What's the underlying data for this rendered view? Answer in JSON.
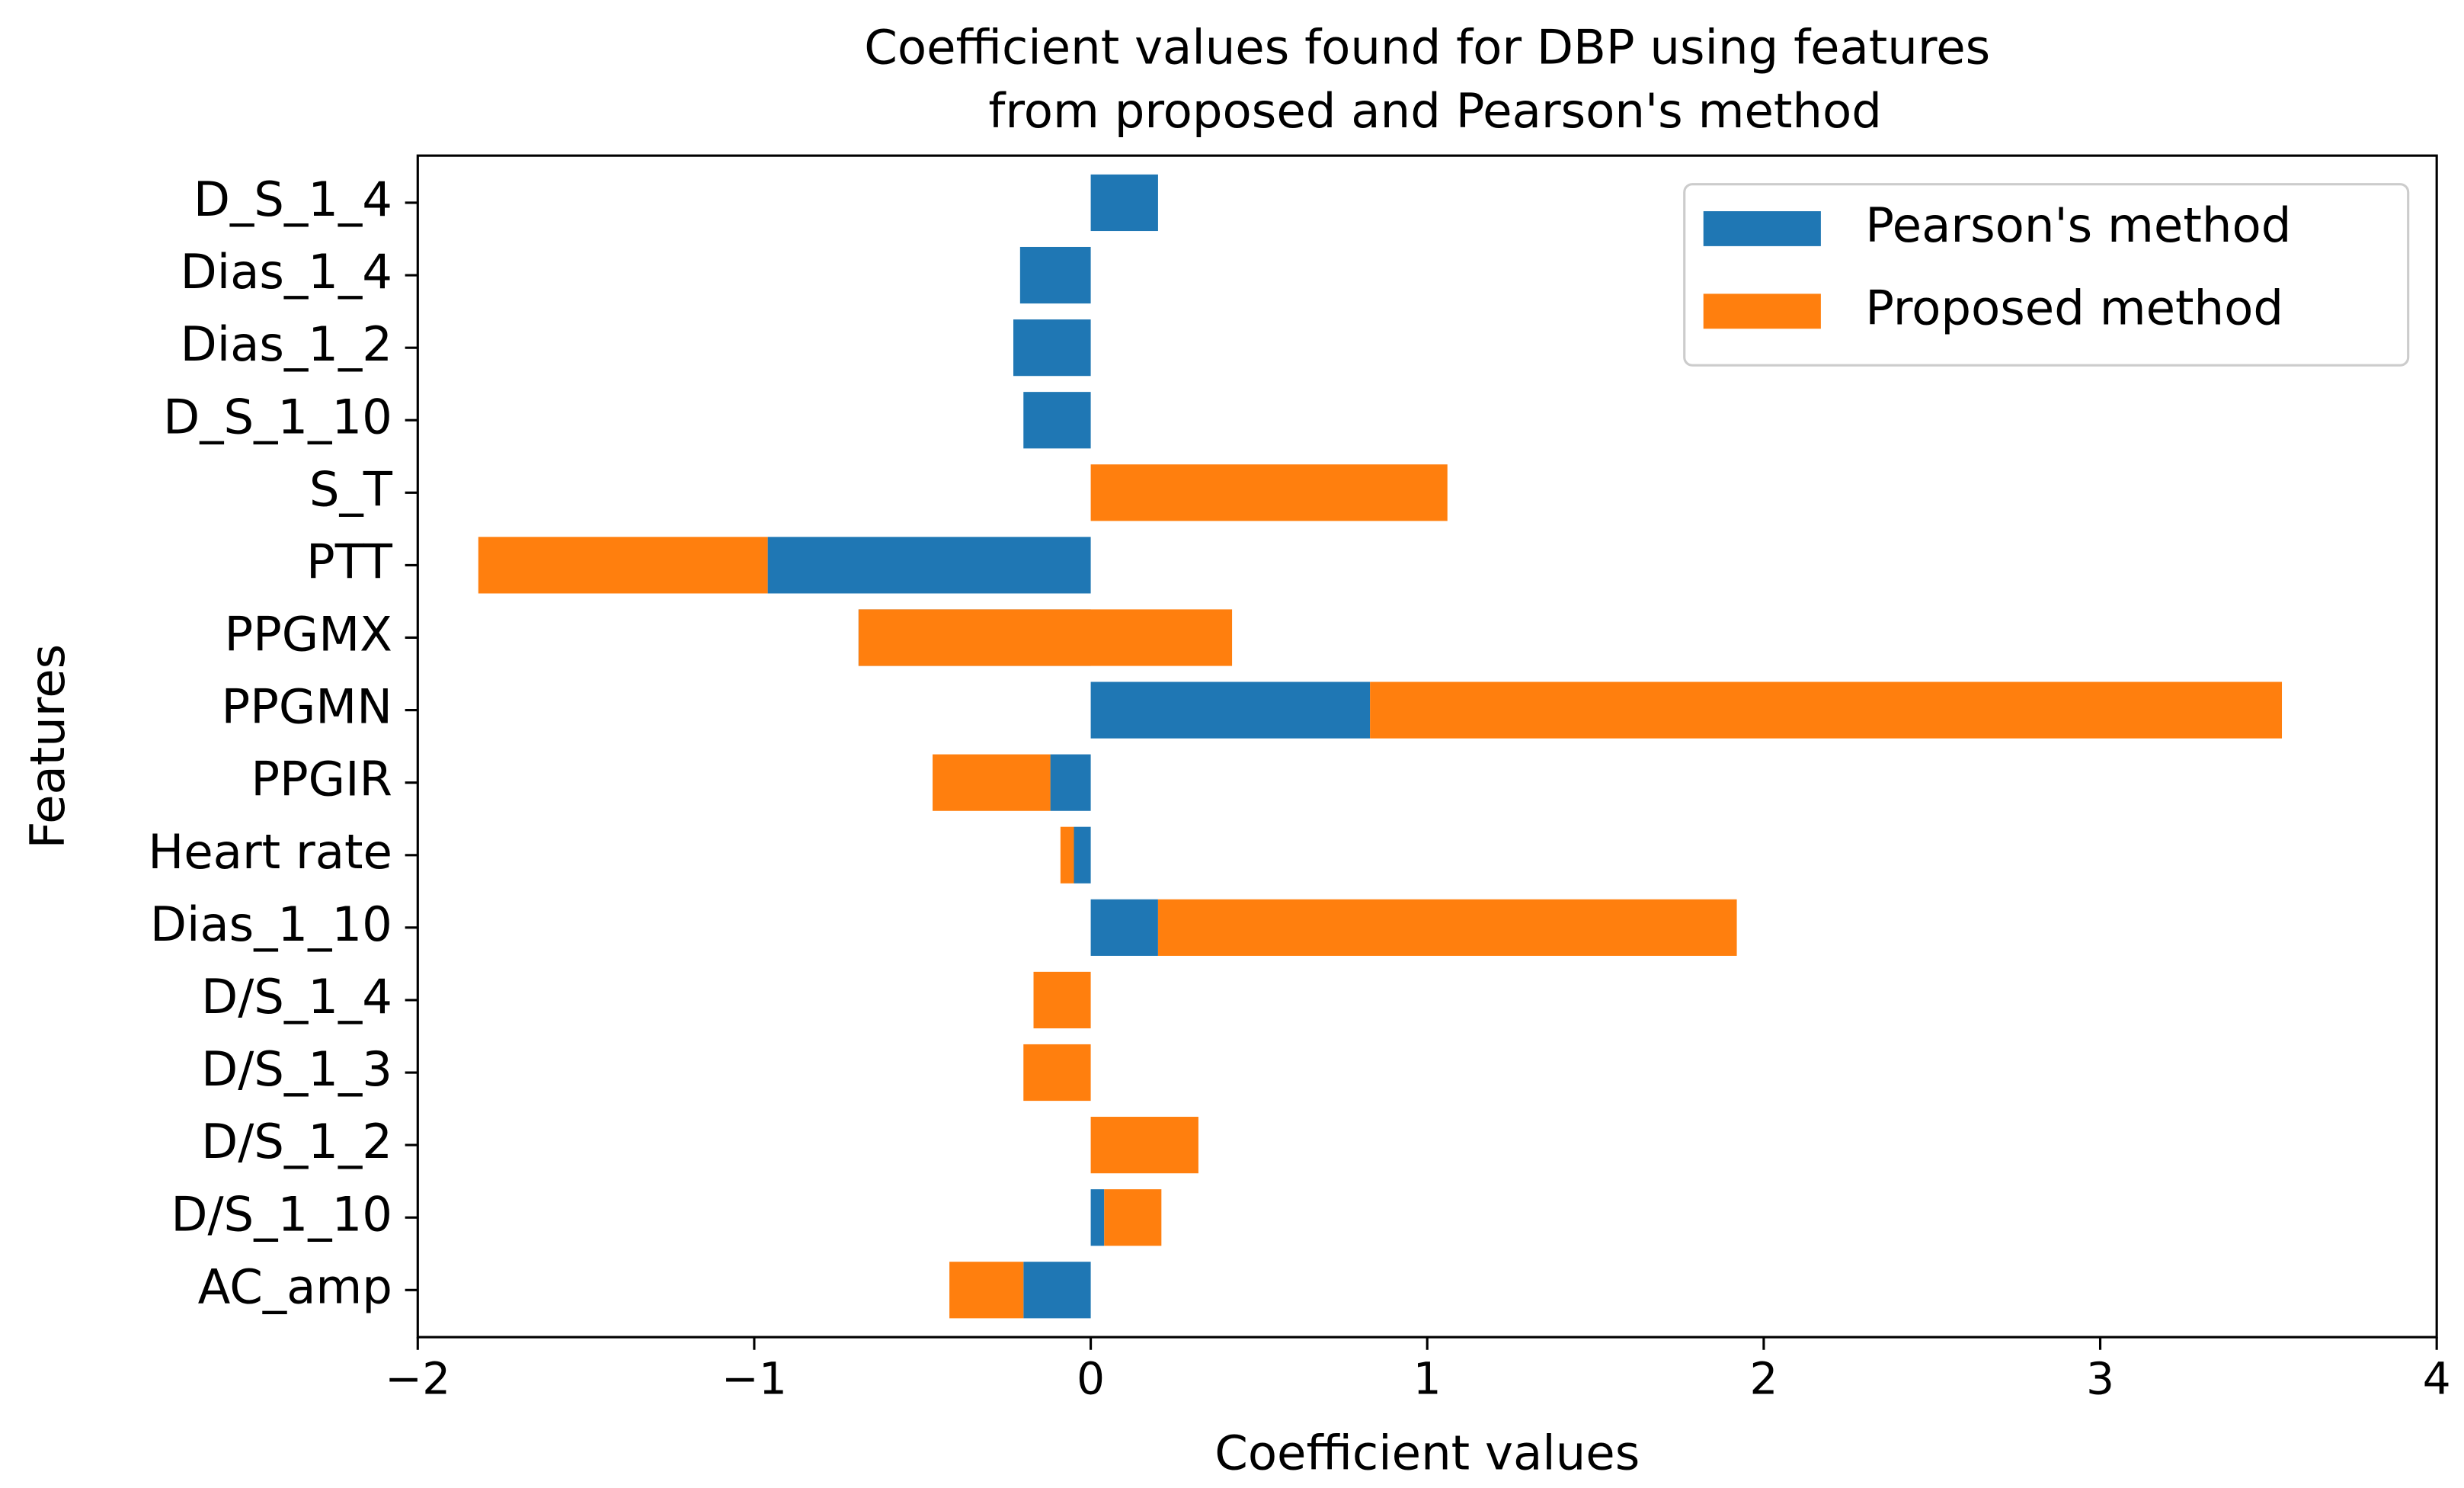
{
  "chart_data": {
    "type": "barh",
    "title": [
      "Coefficient values found for DBP using features",
      "from proposed and Pearson's method"
    ],
    "xlabel": "Coefficient values",
    "ylabel": "Features",
    "categories": [
      "D_S_1_4",
      "Dias_1_4",
      "Dias_1_2",
      "D_S_1_10",
      "S_T",
      "PTT",
      "PPGMX",
      "PPGMN",
      "PPGIR",
      "Heart rate",
      "Dias_1_10",
      "D/S_1_4",
      "D/S_1_3",
      "D/S_1_2",
      "D/S_1_10",
      "AC_amp"
    ],
    "series": [
      {
        "name": "Pearson's method",
        "color": "#1f77b4",
        "values": [
          0.2,
          -0.21,
          -0.23,
          -0.2,
          0,
          -0.96,
          -0.69,
          0.83,
          -0.12,
          -0.05,
          0.2,
          0,
          0,
          0,
          0.04,
          -0.2
        ]
      },
      {
        "name": "Proposed method",
        "color": "#ff7f0e",
        "values": [
          0,
          0,
          0,
          0,
          1.06,
          -0.86,
          1.11,
          2.71,
          -0.35,
          -0.04,
          1.72,
          -0.17,
          -0.2,
          0.32,
          0.17,
          -0.22
        ]
      }
    ],
    "stacked": true,
    "xlim": [
      -2,
      4
    ],
    "xticks": [
      {
        "value": -2,
        "label": "−2"
      },
      {
        "value": -1,
        "label": "−1"
      },
      0,
      1,
      2,
      3,
      4
    ],
    "legend": "upper right"
  }
}
